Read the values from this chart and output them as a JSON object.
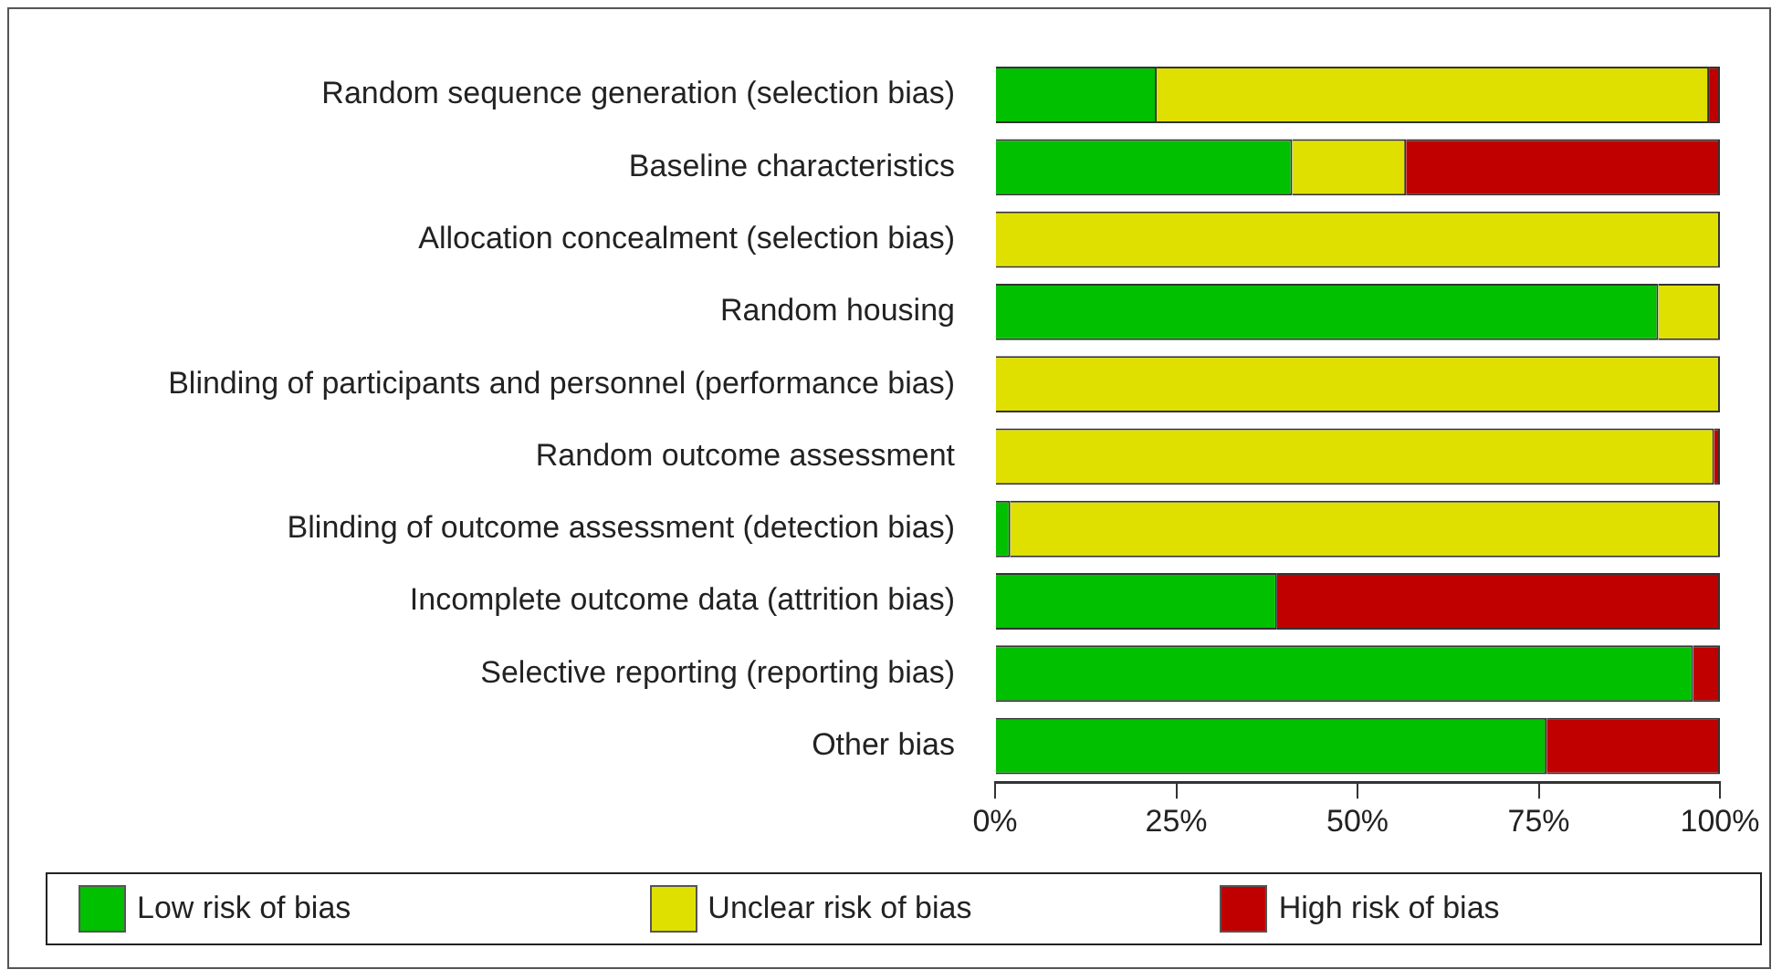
{
  "chart_data": {
    "type": "bar",
    "orientation": "horizontal",
    "stacked": true,
    "categories": [
      "Random sequence generation (selection bias)",
      "Baseline characteristics",
      "Allocation concealment (selection bias)",
      "Random housing",
      "Blinding of participants and personnel (performance bias)",
      "Random outcome assessment",
      "Blinding of outcome assessment (detection bias)",
      "Incomplete outcome data (attrition bias)",
      "Selective reporting (reporting bias)",
      "Other bias"
    ],
    "series": [
      {
        "name": "Low risk of bias",
        "color": "#00c000",
        "values": [
          22.3,
          41,
          0,
          91.5,
          0,
          0,
          2.1,
          38.9,
          96.3,
          76.1
        ]
      },
      {
        "name": "Unclear risk of bias",
        "color": "#e0e000",
        "values": [
          76.2,
          15.7,
          100,
          8.5,
          100,
          99.2,
          97.9,
          0,
          0,
          0
        ]
      },
      {
        "name": "High risk of bias",
        "color": "#c00000",
        "values": [
          1.5,
          43.3,
          0,
          0,
          0,
          0.8,
          0,
          61.1,
          3.7,
          23.9
        ]
      }
    ],
    "xlim": [
      0,
      100
    ],
    "xticks": [
      {
        "value": 0,
        "label": "0%"
      },
      {
        "value": 25,
        "label": "25%"
      },
      {
        "value": 50,
        "label": "50%"
      },
      {
        "value": 75,
        "label": "75%"
      },
      {
        "value": 100,
        "label": "100%"
      }
    ],
    "grid": false,
    "legend": "bottom"
  }
}
